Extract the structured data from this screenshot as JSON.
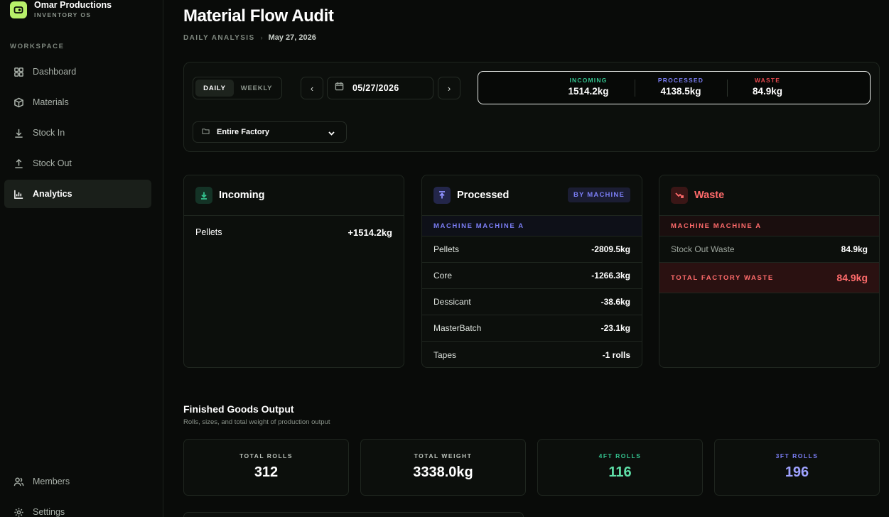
{
  "brand": {
    "name": "Omar Productions",
    "subtitle": "INVENTORY OS"
  },
  "sidebar": {
    "section_label": "WORKSPACE",
    "items": [
      {
        "label": "Dashboard",
        "icon": "grid-icon"
      },
      {
        "label": "Materials",
        "icon": "box-icon"
      },
      {
        "label": "Stock In",
        "icon": "download-icon"
      },
      {
        "label": "Stock Out",
        "icon": "upload-icon"
      },
      {
        "label": "Analytics",
        "icon": "bar-chart-icon",
        "active": true
      }
    ],
    "bottom_items": [
      {
        "label": "Members",
        "icon": "users-icon"
      },
      {
        "label": "Settings",
        "icon": "gear-icon"
      }
    ]
  },
  "header": {
    "title": "Material Flow Audit",
    "breadcrumb_label": "DAILY ANALYSIS",
    "breadcrumb_separator": "›",
    "breadcrumb_date": "May 27, 2026"
  },
  "controls": {
    "period_tabs": [
      {
        "label": "DAILY",
        "active": true
      },
      {
        "label": "WEEKLY",
        "active": false
      }
    ],
    "prev_symbol": "‹",
    "next_symbol": "›",
    "date_value": "05/27/2026",
    "factory_value": "Entire Factory",
    "summary": [
      {
        "label": "INCOMING",
        "value": "1514.2kg",
        "color": "#34c38f"
      },
      {
        "label": "PROCESSED",
        "value": "4138.5kg",
        "color": "#7b7ef5"
      },
      {
        "label": "WASTE",
        "value": "84.9kg",
        "color": "#e5484d"
      }
    ]
  },
  "incoming": {
    "title": "Incoming",
    "rows": [
      {
        "label": "Pellets",
        "value": "+1514.2kg"
      }
    ]
  },
  "processed": {
    "title": "Processed",
    "badge": "BY MACHINE",
    "group": "MACHINE MACHINE A",
    "rows": [
      {
        "label": "Pellets",
        "value": "-2809.5kg"
      },
      {
        "label": "Core",
        "value": "-1266.3kg"
      },
      {
        "label": "Dessicant",
        "value": "-38.6kg"
      },
      {
        "label": "MasterBatch",
        "value": "-23.1kg"
      },
      {
        "label": "Tapes",
        "value": "-1 rolls"
      }
    ]
  },
  "waste": {
    "title": "Waste",
    "group": "MACHINE MACHINE A",
    "rows": [
      {
        "label": "Stock Out Waste",
        "value": "84.9kg"
      }
    ],
    "total_label": "TOTAL FACTORY WASTE",
    "total_value": "84.9kg"
  },
  "finished_goods": {
    "title": "Finished Goods Output",
    "subtitle": "Rolls, sizes, and total weight of production output",
    "kpis": [
      {
        "label": "TOTAL ROLLS",
        "value": "312",
        "label_color": "#b9c0b9",
        "value_color": "#ffffff"
      },
      {
        "label": "TOTAL WEIGHT",
        "value": "3338.0kg",
        "label_color": "#b9c0b9",
        "value_color": "#ffffff"
      },
      {
        "label": "4FT ROLLS",
        "value": "116",
        "label_color": "#34c38f",
        "value_color": "#5fe0a8"
      },
      {
        "label": "3FT ROLLS",
        "value": "196",
        "label_color": "#7b7ef5",
        "value_color": "#9fa2ff"
      }
    ]
  },
  "colors": {
    "accent_green": "#b8f06a",
    "incoming": "#34c38f",
    "processed": "#7b7ef5",
    "waste": "#e5484d"
  }
}
